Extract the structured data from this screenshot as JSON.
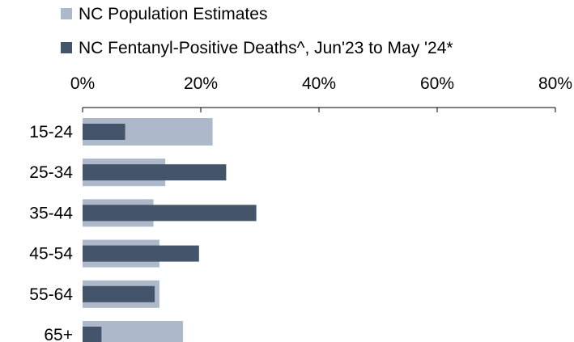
{
  "chart_data": {
    "type": "bar",
    "orientation": "horizontal",
    "layout": "overlapped",
    "categories": [
      "15-24",
      "25-34",
      "35-44",
      "45-54",
      "55-64",
      "65+"
    ],
    "series": [
      {
        "name": "NC Population Estimates",
        "color": "#adb9ca",
        "values": [
          22,
          14,
          12,
          13,
          13,
          17
        ]
      },
      {
        "name": "NC Fentanyl-Positive Deaths^, Jun'23 to May '24*",
        "color": "#44546a",
        "values": [
          7.2,
          24.3,
          29.4,
          19.7,
          12.2,
          3.2
        ]
      }
    ],
    "xlim": [
      0,
      80
    ],
    "xticks": [
      0,
      20,
      40,
      60,
      80
    ],
    "xtick_labels": [
      "0%",
      "20%",
      "40%",
      "60%",
      "80%"
    ],
    "axis_position": "top",
    "grid": false,
    "legend_position": "top-left"
  }
}
